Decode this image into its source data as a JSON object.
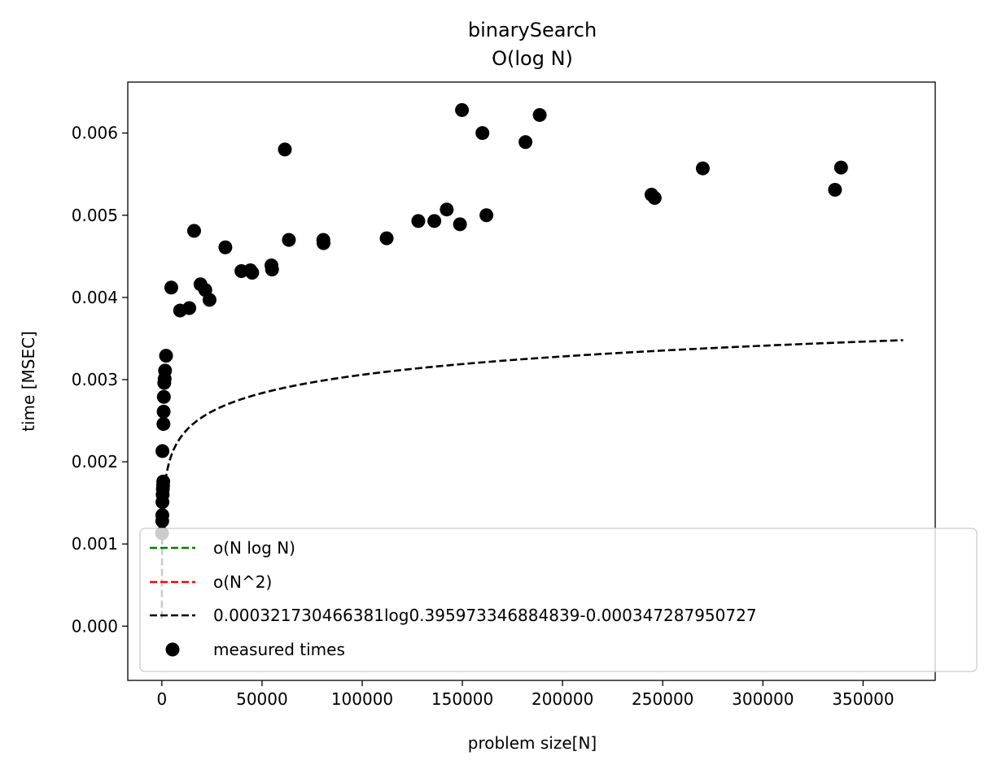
{
  "chart_data": {
    "type": "scatter",
    "title": "binarySearch",
    "subtitle": "O(log N)",
    "xlabel": "problem size[N]",
    "ylabel": "time [MSEC]",
    "xlim": [
      -17000,
      386000
    ],
    "ylim": [
      -0.00066,
      0.00662
    ],
    "xticks": [
      0,
      50000,
      100000,
      150000,
      200000,
      250000,
      300000,
      350000
    ],
    "yticks": [
      0.0,
      0.001,
      0.002,
      0.003,
      0.004,
      0.005,
      0.006
    ],
    "ytick_labels": [
      "0.000",
      "0.001",
      "0.002",
      "0.003",
      "0.004",
      "0.005",
      "0.006"
    ],
    "grid": false,
    "legend_position": "bottom-left",
    "legend": [
      {
        "label": "o(N log N)",
        "color": "#008000",
        "style": "dashed"
      },
      {
        "label": "o(N^2)",
        "color": "#ff0000",
        "style": "dashed"
      },
      {
        "label": "0.000321730466381log0.395973346884839-0.000347287950727",
        "color": "#000000",
        "style": "dashed"
      },
      {
        "label": "measured times",
        "color": "#000000",
        "style": "marker"
      }
    ],
    "fit": {
      "a": 0.000321730466381,
      "b": 0.395973346884839,
      "c": -0.000347287950727,
      "x_max": 370000,
      "color": "#000000"
    },
    "points": [
      [
        100,
        0.00113
      ],
      [
        200,
        0.00128
      ],
      [
        250,
        0.00135
      ],
      [
        300,
        0.00151
      ],
      [
        400,
        0.0016
      ],
      [
        500,
        0.00167
      ],
      [
        600,
        0.00171
      ],
      [
        700,
        0.00176
      ],
      [
        300,
        0.00213
      ],
      [
        800,
        0.00246
      ],
      [
        900,
        0.00261
      ],
      [
        1000,
        0.00279
      ],
      [
        1200,
        0.00296
      ],
      [
        1400,
        0.00301
      ],
      [
        1600,
        0.00311
      ],
      [
        2100,
        0.00329
      ],
      [
        4700,
        0.00412
      ],
      [
        9100,
        0.00384
      ],
      [
        13700,
        0.00387
      ],
      [
        16100,
        0.00481
      ],
      [
        19300,
        0.00416
      ],
      [
        21700,
        0.00409
      ],
      [
        23800,
        0.00397
      ],
      [
        31700,
        0.00461
      ],
      [
        39700,
        0.00432
      ],
      [
        44200,
        0.00433
      ],
      [
        45100,
        0.0043
      ],
      [
        54700,
        0.00439
      ],
      [
        55000,
        0.00434
      ],
      [
        61400,
        0.0058
      ],
      [
        63400,
        0.0047
      ],
      [
        80600,
        0.0047
      ],
      [
        80700,
        0.00466
      ],
      [
        112200,
        0.00472
      ],
      [
        128000,
        0.00493
      ],
      [
        136000,
        0.00493
      ],
      [
        142200,
        0.00507
      ],
      [
        148800,
        0.00489
      ],
      [
        149800,
        0.00628
      ],
      [
        160000,
        0.006
      ],
      [
        162000,
        0.005
      ],
      [
        181500,
        0.00589
      ],
      [
        188600,
        0.00622
      ],
      [
        244400,
        0.00525
      ],
      [
        246000,
        0.00521
      ],
      [
        270000,
        0.00557
      ],
      [
        336000,
        0.00531
      ],
      [
        339000,
        0.00558
      ]
    ]
  }
}
